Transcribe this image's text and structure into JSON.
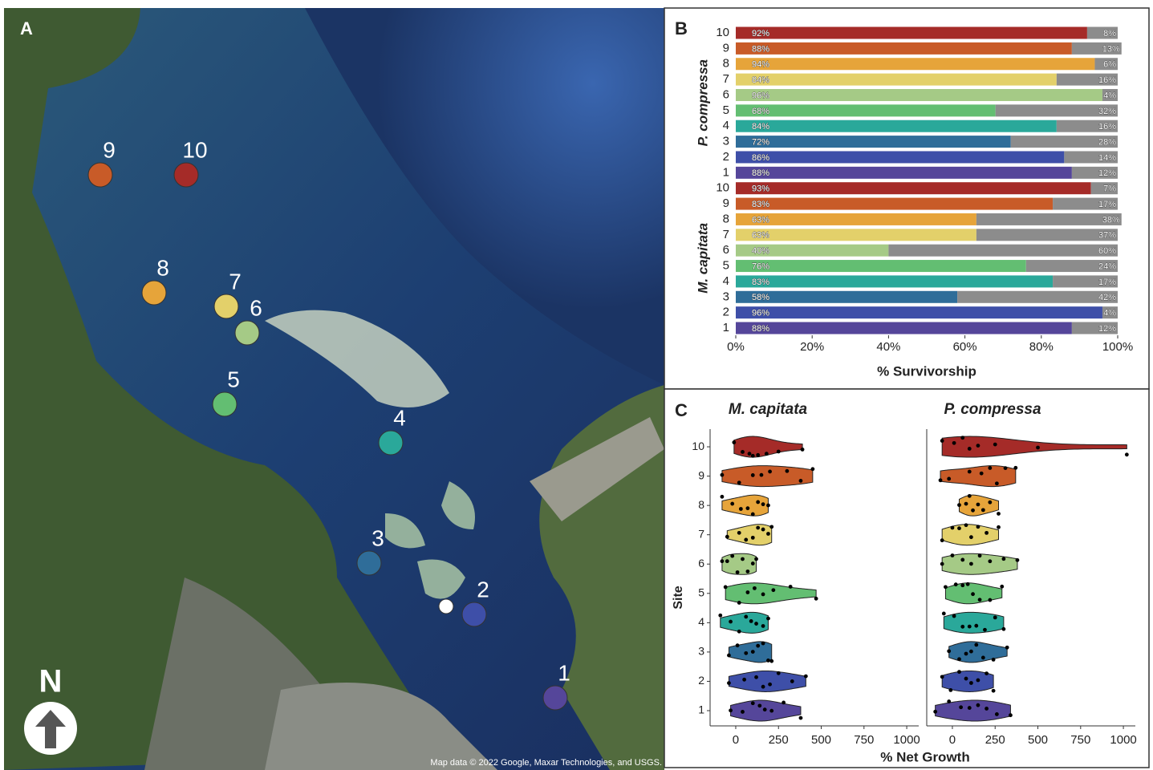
{
  "map": {
    "label": "A",
    "north": "N",
    "attribution": "Map data © 2022 Google, Maxar Technologies, and USGS.",
    "sites": [
      "1",
      "2",
      "3",
      "4",
      "5",
      "6",
      "7",
      "8",
      "9",
      "10"
    ],
    "site_colors": [
      "#55469a",
      "#3e4fa8",
      "#2f6d99",
      "#2aa89a",
      "#63be72",
      "#a5ca86",
      "#e3d06a",
      "#e6a43a",
      "#c85b28",
      "#a52b28"
    ]
  },
  "chart_data": [
    {
      "type": "bar",
      "label": "B",
      "xlabel": "% Survivorship",
      "xlim": [
        0,
        100
      ],
      "xticks": [
        {
          "value": 0,
          "label": "0%"
        },
        {
          "value": 20,
          "label": "20%"
        },
        {
          "value": 40,
          "label": "40%"
        },
        {
          "value": 60,
          "label": "60%"
        },
        {
          "value": 80,
          "label": "80%"
        },
        {
          "value": 100,
          "label": "100%"
        }
      ],
      "groups": [
        {
          "name": "P. compressa",
          "categories": [
            "10",
            "9",
            "8",
            "7",
            "6",
            "5",
            "4",
            "3",
            "2",
            "1"
          ],
          "series": [
            {
              "colors": [
                "#a52b28",
                "#c85b28",
                "#e6a43a",
                "#e3d06a",
                "#a5ca86",
                "#63be72",
                "#2aa89a",
                "#2f6d99",
                "#3e4fa8",
                "#55469a"
              ],
              "values": [
                92,
                88,
                94,
                84,
                96,
                68,
                84,
                72,
                86,
                88
              ],
              "value_labels": [
                "92%",
                "88%",
                "94%",
                "84%",
                "96%",
                "68%",
                "84%",
                "72%",
                "86%",
                "88%"
              ]
            },
            {
              "color": "#8c8c8c",
              "values": [
                8,
                13,
                6,
                16,
                4,
                32,
                16,
                28,
                14,
                12
              ],
              "value_labels": [
                "8%",
                "13%",
                "6%",
                "16%",
                "4%",
                "32%",
                "16%",
                "28%",
                "14%",
                "12%"
              ]
            }
          ]
        },
        {
          "name": "M. capitata",
          "categories": [
            "10",
            "9",
            "8",
            "7",
            "6",
            "5",
            "4",
            "3",
            "2",
            "1"
          ],
          "series": [
            {
              "colors": [
                "#a52b28",
                "#c85b28",
                "#e6a43a",
                "#e3d06a",
                "#a5ca86",
                "#63be72",
                "#2aa89a",
                "#2f6d99",
                "#3e4fa8",
                "#55469a"
              ],
              "values": [
                93,
                83,
                63,
                63,
                40,
                76,
                83,
                58,
                96,
                88
              ],
              "value_labels": [
                "93%",
                "83%",
                "63%",
                "63%",
                "40%",
                "76%",
                "83%",
                "58%",
                "96%",
                "88%"
              ]
            },
            {
              "color": "#8c8c8c",
              "values": [
                7,
                17,
                38,
                37,
                60,
                24,
                17,
                42,
                4,
                12
              ],
              "value_labels": [
                "7%",
                "17%",
                "38%",
                "37%",
                "60%",
                "24%",
                "17%",
                "42%",
                "4%",
                "12%"
              ]
            }
          ]
        }
      ]
    },
    {
      "type": "violin",
      "label": "C",
      "ylabel": "Site",
      "xlabel": "% Net Growth",
      "categories": [
        "1",
        "2",
        "3",
        "4",
        "5",
        "6",
        "7",
        "8",
        "9",
        "10"
      ],
      "colors": [
        "#55469a",
        "#3e4fa8",
        "#2f6d99",
        "#2aa89a",
        "#63be72",
        "#a5ca86",
        "#e3d06a",
        "#e6a43a",
        "#c85b28",
        "#a52b28"
      ],
      "xlim": [
        -150,
        1070
      ],
      "xticks": [
        0,
        250,
        500,
        750,
        1000
      ],
      "panels": [
        {
          "title": "M. capitata",
          "values": [
            [
              -30,
              40,
              100,
              140,
              170,
              210,
              280,
              380
            ],
            [
              -40,
              50,
              120,
              160,
              200,
              250,
              330,
              410
            ],
            [
              -40,
              10,
              60,
              100,
              130,
              160,
              190,
              210
            ],
            [
              -90,
              -30,
              20,
              60,
              90,
              120,
              160,
              190
            ],
            [
              -60,
              20,
              70,
              110,
              160,
              220,
              320,
              470
            ],
            [
              -80,
              -50,
              -20,
              10,
              40,
              70,
              100,
              120
            ],
            [
              -50,
              20,
              60,
              100,
              130,
              160,
              190,
              210
            ],
            [
              -80,
              -20,
              30,
              70,
              100,
              130,
              160,
              190
            ],
            [
              -80,
              20,
              100,
              150,
              200,
              300,
              380,
              450
            ],
            [
              -10,
              40,
              80,
              100,
              130,
              180,
              250,
              390
            ]
          ]
        },
        {
          "title": "P. compressa",
          "values": [
            [
              -100,
              -20,
              50,
              100,
              150,
              200,
              260,
              340
            ],
            [
              -60,
              -10,
              40,
              80,
              110,
              150,
              200,
              240
            ],
            [
              -20,
              40,
              80,
              110,
              140,
              180,
              240,
              320
            ],
            [
              -50,
              10,
              60,
              100,
              140,
              190,
              250,
              300
            ],
            [
              -40,
              20,
              60,
              90,
              120,
              160,
              220,
              290
            ],
            [
              -60,
              0,
              60,
              110,
              160,
              220,
              300,
              380
            ],
            [
              -60,
              0,
              40,
              80,
              110,
              150,
              200,
              270
            ],
            [
              40,
              80,
              100,
              120,
              150,
              180,
              220,
              270
            ],
            [
              -70,
              -20,
              100,
              170,
              220,
              260,
              310,
              370
            ],
            [
              -60,
              10,
              60,
              100,
              150,
              250,
              500,
              1020
            ]
          ]
        }
      ]
    }
  ]
}
